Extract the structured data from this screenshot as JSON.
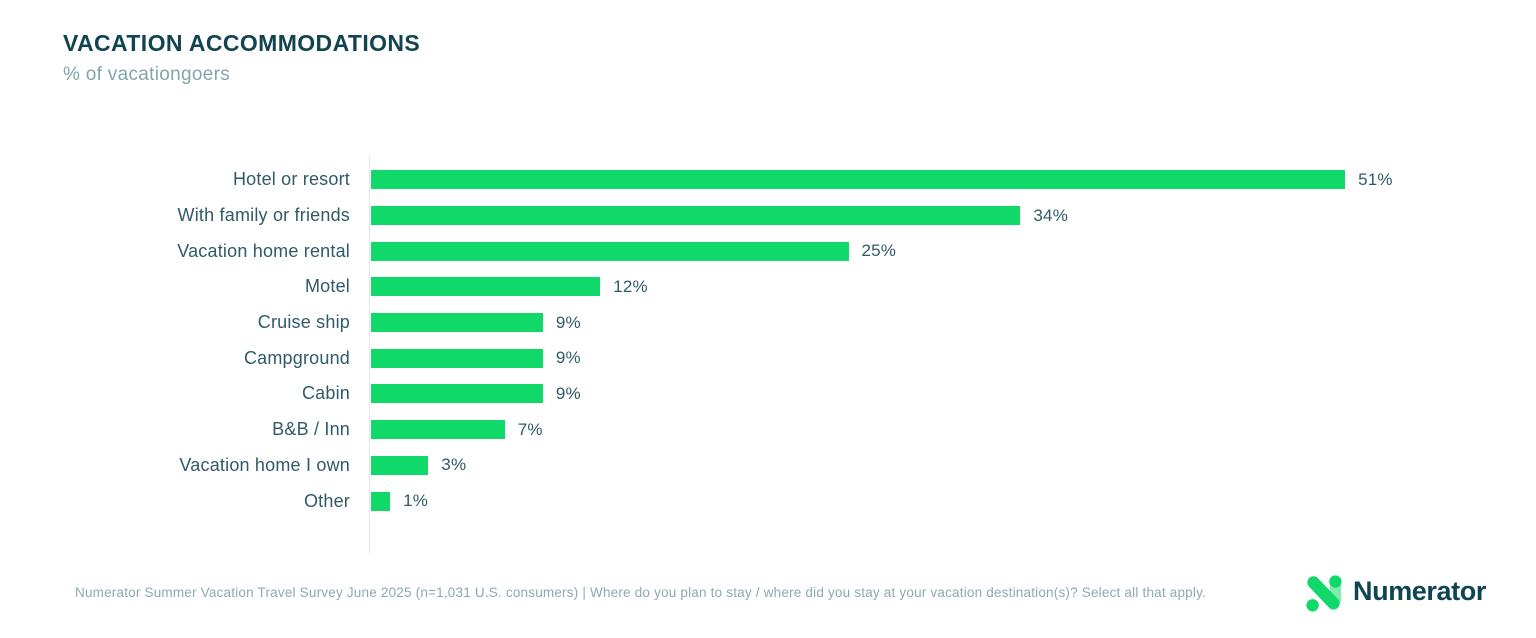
{
  "header": {
    "title": "VACATION ACCOMMODATIONS",
    "subtitle": "% of vacationgoers"
  },
  "chart_data": {
    "type": "bar",
    "orientation": "horizontal",
    "title": "VACATION ACCOMMODATIONS",
    "subtitle": "% of vacationgoers",
    "categories": [
      "Hotel or resort",
      "With family or friends",
      "Vacation home rental",
      "Motel",
      "Cruise ship",
      "Campground",
      "Cabin",
      "B&B / Inn",
      "Vacation home I own",
      "Other"
    ],
    "values": [
      51,
      34,
      25,
      12,
      9,
      9,
      9,
      7,
      3,
      1
    ],
    "value_labels": [
      "51%",
      "34%",
      "25%",
      "12%",
      "9%",
      "9%",
      "9%",
      "7%",
      "3%",
      "1%"
    ],
    "xlabel": "",
    "ylabel": "",
    "xlim": [
      0,
      55
    ],
    "grid": false,
    "legend": false,
    "bar_color": "#10D96A",
    "axis_line_color": "#E4E7E7",
    "label_color": "#2F5A68"
  },
  "footer": {
    "source_text": "Numerator Summer Vacation Travel Survey June 2025 (n=1,031 U.S. consumers) | Where do you plan to stay / where did you stay at your vacation destination(s)? Select all that apply."
  },
  "logo": {
    "wordmark": "Numerator",
    "icon": "numerator-n-icon",
    "green": "#10D96A",
    "mint": "#7FEBAD",
    "dark": "#0F4553"
  }
}
